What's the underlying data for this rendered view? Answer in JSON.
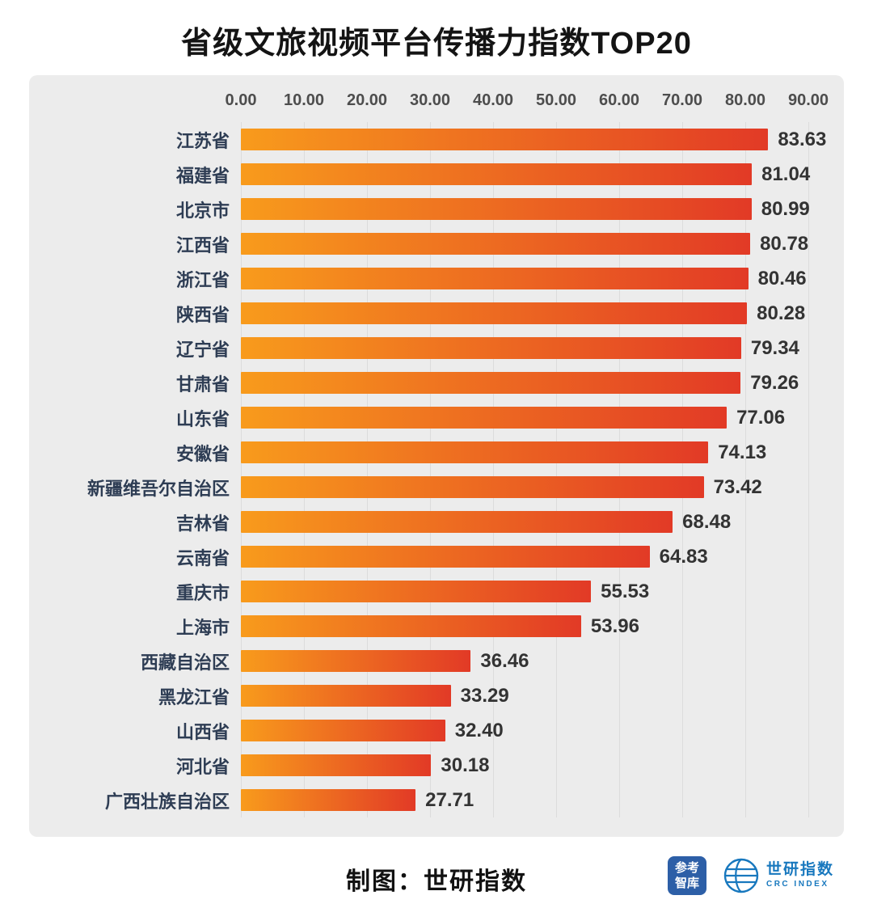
{
  "title": "省级文旅视频平台传播力指数TOP20",
  "chart_data": {
    "type": "bar",
    "orientation": "horizontal",
    "title": "省级文旅视频平台传播力指数TOP20",
    "categories": [
      "江苏省",
      "福建省",
      "北京市",
      "江西省",
      "浙江省",
      "陕西省",
      "辽宁省",
      "甘肃省",
      "山东省",
      "安徽省",
      "新疆维吾尔自治区",
      "吉林省",
      "云南省",
      "重庆市",
      "上海市",
      "西藏自治区",
      "黑龙江省",
      "山西省",
      "河北省",
      "广西壮族自治区"
    ],
    "values": [
      83.63,
      81.04,
      80.99,
      80.78,
      80.46,
      80.28,
      79.34,
      79.26,
      77.06,
      74.13,
      73.42,
      68.48,
      64.83,
      55.53,
      53.96,
      36.46,
      33.29,
      32.4,
      30.18,
      27.71
    ],
    "x_ticks": [
      "0.00",
      "10.00",
      "20.00",
      "30.00",
      "40.00",
      "50.00",
      "60.00",
      "70.00",
      "80.00",
      "90.00"
    ],
    "xlim": [
      0,
      90
    ],
    "grid": true,
    "value_labels": true,
    "legend": "none",
    "axis_position": "top"
  },
  "footer": {
    "credit": "制图：世研指数",
    "logo1": {
      "line1": "参考",
      "line2": "智库"
    },
    "logo2": {
      "name": "世研指数",
      "sub": "CRC INDEX"
    }
  },
  "colors": {
    "bar_start": "#F89B1C",
    "bar_end": "#E23A26",
    "panel_bg": "#ECECEC",
    "label_color": "#2E3D54",
    "value_color": "#333333",
    "axis_color": "#4D4D4D",
    "grid_color": "#DCDCDC",
    "logo_blue_dark": "#2D5FA7",
    "logo_blue": "#1878BE"
  }
}
